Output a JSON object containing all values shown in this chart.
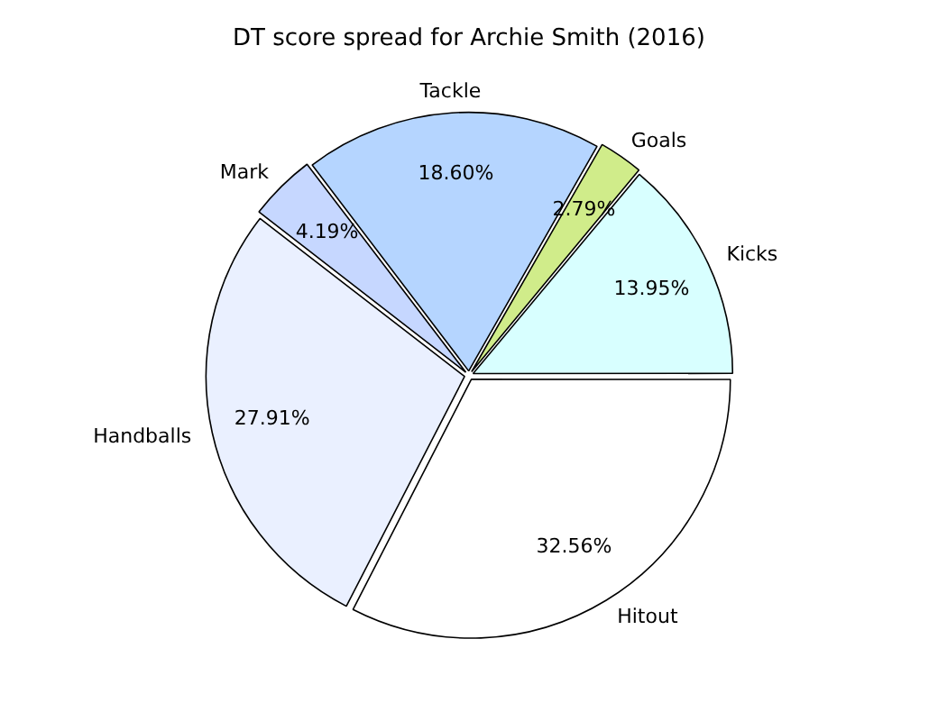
{
  "chart_data": {
    "type": "pie",
    "title": "DT score spread for Archie Smith (2016)",
    "categories": [
      "Hitout",
      "Handballs",
      "Mark",
      "Tackle",
      "Goals",
      "Kicks"
    ],
    "values": [
      32.56,
      27.91,
      4.19,
      18.6,
      2.79,
      13.95
    ],
    "colors": [
      "#ffffff",
      "#eaf0ff",
      "#c6d7ff",
      "#b5d5ff",
      "#d0ec8a",
      "#d8ffff"
    ],
    "value_labels": [
      "32.56%",
      "27.91%",
      "4.19%",
      "18.60%",
      "2.79%",
      "13.95%"
    ],
    "legend": false
  }
}
